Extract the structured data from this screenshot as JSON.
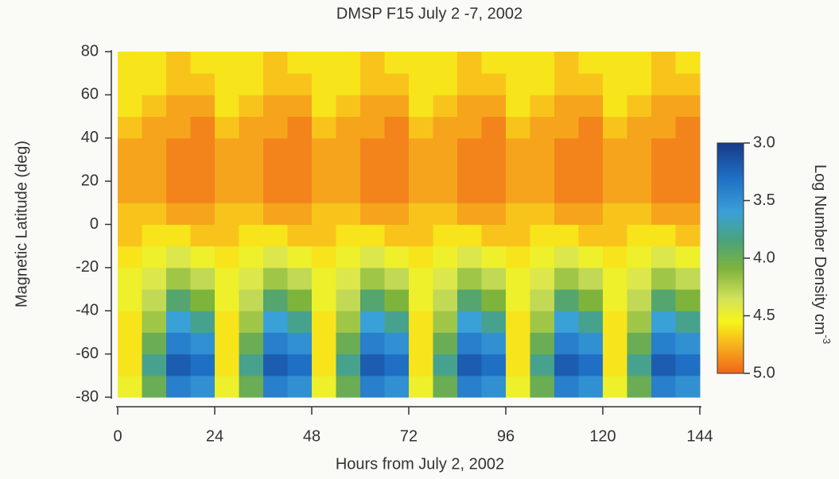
{
  "chart_data": {
    "type": "heatmap",
    "title": "DMSP F15  July 2 -7, 2002",
    "x_label": "Hours from July 2,  2002",
    "y_label": "Magnetic Latitude (deg)",
    "colorbar_label": "Log Number Density cm",
    "colorbar_label_sup": "-3",
    "xlim": [
      0,
      144
    ],
    "ylim": [
      -80,
      80
    ],
    "xticks": [
      0,
      24,
      48,
      72,
      96,
      120,
      144
    ],
    "yticks": [
      -80,
      -60,
      -40,
      -20,
      0,
      20,
      40,
      60,
      80
    ],
    "clim": [
      3.0,
      5.0
    ],
    "cticks": [
      {
        "value": 3.0,
        "label": "3.0"
      },
      {
        "value": 3.5,
        "label": "3.5"
      },
      {
        "value": 4.0,
        "label": "4.0"
      },
      {
        "value": 4.5,
        "label": "4.5"
      },
      {
        "value": 5.0,
        "label": "5.0"
      }
    ],
    "colorscale": [
      [
        3.0,
        "#173a86"
      ],
      [
        3.3,
        "#1f6fc4"
      ],
      [
        3.6,
        "#3aa0d8"
      ],
      [
        3.85,
        "#4aa37a"
      ],
      [
        4.1,
        "#7fb43c"
      ],
      [
        4.35,
        "#d2e25a"
      ],
      [
        4.55,
        "#f6f41a"
      ],
      [
        4.75,
        "#f8b41c"
      ],
      [
        5.0,
        "#f0641a"
      ]
    ],
    "x_edges": [
      0,
      6,
      12,
      18,
      24,
      30,
      36,
      42,
      48,
      54,
      60,
      66,
      72,
      78,
      84,
      90,
      96,
      102,
      108,
      114,
      120,
      126,
      132,
      138,
      144
    ],
    "y_edges": [
      -80,
      -70,
      -60,
      -50,
      -40,
      -30,
      -20,
      -10,
      0,
      10,
      20,
      30,
      40,
      50,
      60,
      70,
      80
    ],
    "z": [
      [
        4.5,
        4.0,
        3.4,
        3.5,
        4.5,
        4.0,
        3.4,
        3.5,
        4.5,
        4.0,
        3.4,
        3.5,
        4.5,
        4.0,
        3.4,
        3.5,
        4.5,
        4.0,
        3.4,
        3.5,
        4.5,
        4.0,
        3.4,
        3.5
      ],
      [
        4.6,
        3.8,
        3.2,
        3.3,
        4.6,
        3.8,
        3.2,
        3.3,
        4.6,
        3.8,
        3.2,
        3.3,
        4.6,
        3.8,
        3.2,
        3.3,
        4.6,
        3.8,
        3.2,
        3.3,
        4.6,
        3.8,
        3.2,
        3.3
      ],
      [
        4.6,
        4.0,
        3.4,
        3.5,
        4.6,
        4.0,
        3.4,
        3.5,
        4.6,
        4.0,
        3.4,
        3.5,
        4.6,
        4.0,
        3.4,
        3.5,
        4.6,
        4.0,
        3.4,
        3.5,
        4.6,
        4.0,
        3.4,
        3.5
      ],
      [
        4.6,
        4.2,
        3.6,
        3.8,
        4.6,
        4.2,
        3.6,
        3.8,
        4.6,
        4.2,
        3.6,
        3.8,
        4.6,
        4.2,
        3.6,
        3.8,
        4.6,
        4.2,
        3.6,
        3.8,
        4.6,
        4.2,
        3.6,
        3.8
      ],
      [
        4.5,
        4.3,
        3.9,
        4.1,
        4.5,
        4.3,
        3.9,
        4.1,
        4.5,
        4.3,
        3.9,
        4.1,
        4.5,
        4.3,
        3.9,
        4.1,
        4.5,
        4.3,
        3.9,
        4.1,
        4.5,
        4.3,
        3.9,
        4.1
      ],
      [
        4.5,
        4.4,
        4.2,
        4.3,
        4.5,
        4.4,
        4.2,
        4.3,
        4.5,
        4.4,
        4.2,
        4.3,
        4.5,
        4.4,
        4.2,
        4.3,
        4.5,
        4.4,
        4.2,
        4.3,
        4.5,
        4.4,
        4.2,
        4.3
      ],
      [
        4.6,
        4.5,
        4.4,
        4.5,
        4.6,
        4.5,
        4.4,
        4.5,
        4.6,
        4.5,
        4.4,
        4.5,
        4.6,
        4.5,
        4.4,
        4.5,
        4.6,
        4.5,
        4.4,
        4.5,
        4.6,
        4.5,
        4.4,
        4.5
      ],
      [
        4.7,
        4.6,
        4.6,
        4.7,
        4.7,
        4.6,
        4.6,
        4.7,
        4.7,
        4.6,
        4.6,
        4.7,
        4.7,
        4.6,
        4.6,
        4.7,
        4.7,
        4.6,
        4.6,
        4.7,
        4.7,
        4.6,
        4.6,
        4.7
      ],
      [
        4.7,
        4.7,
        4.8,
        4.8,
        4.7,
        4.7,
        4.8,
        4.8,
        4.7,
        4.7,
        4.8,
        4.8,
        4.7,
        4.7,
        4.8,
        4.8,
        4.7,
        4.7,
        4.8,
        4.8,
        4.7,
        4.7,
        4.8,
        4.8
      ],
      [
        4.8,
        4.8,
        4.9,
        4.9,
        4.8,
        4.8,
        4.9,
        4.9,
        4.8,
        4.8,
        4.9,
        4.9,
        4.8,
        4.8,
        4.9,
        4.9,
        4.8,
        4.8,
        4.9,
        4.9,
        4.8,
        4.8,
        4.9,
        4.9
      ],
      [
        4.8,
        4.8,
        4.9,
        4.9,
        4.8,
        4.8,
        4.9,
        4.9,
        4.8,
        4.8,
        4.9,
        4.9,
        4.8,
        4.8,
        4.9,
        4.9,
        4.8,
        4.8,
        4.9,
        4.9,
        4.8,
        4.8,
        4.9,
        4.9
      ],
      [
        4.8,
        4.8,
        4.9,
        4.9,
        4.8,
        4.8,
        4.9,
        4.9,
        4.8,
        4.8,
        4.9,
        4.9,
        4.8,
        4.8,
        4.9,
        4.9,
        4.8,
        4.8,
        4.9,
        4.9,
        4.8,
        4.8,
        4.9,
        4.9
      ],
      [
        4.7,
        4.8,
        4.8,
        4.9,
        4.7,
        4.8,
        4.8,
        4.9,
        4.7,
        4.8,
        4.8,
        4.9,
        4.7,
        4.8,
        4.8,
        4.9,
        4.7,
        4.8,
        4.8,
        4.9,
        4.7,
        4.8,
        4.8,
        4.9
      ],
      [
        4.6,
        4.7,
        4.8,
        4.8,
        4.6,
        4.7,
        4.8,
        4.8,
        4.6,
        4.7,
        4.8,
        4.8,
        4.6,
        4.7,
        4.8,
        4.8,
        4.6,
        4.7,
        4.8,
        4.8,
        4.6,
        4.7,
        4.8,
        4.8
      ],
      [
        4.6,
        4.6,
        4.7,
        4.7,
        4.6,
        4.6,
        4.7,
        4.7,
        4.6,
        4.6,
        4.7,
        4.7,
        4.6,
        4.6,
        4.7,
        4.7,
        4.6,
        4.6,
        4.7,
        4.7,
        4.6,
        4.6,
        4.7,
        4.7
      ],
      [
        4.6,
        4.6,
        4.7,
        4.6,
        4.6,
        4.6,
        4.7,
        4.6,
        4.6,
        4.6,
        4.7,
        4.6,
        4.6,
        4.6,
        4.7,
        4.6,
        4.6,
        4.6,
        4.7,
        4.6,
        4.6,
        4.6,
        4.7,
        4.6
      ]
    ]
  }
}
